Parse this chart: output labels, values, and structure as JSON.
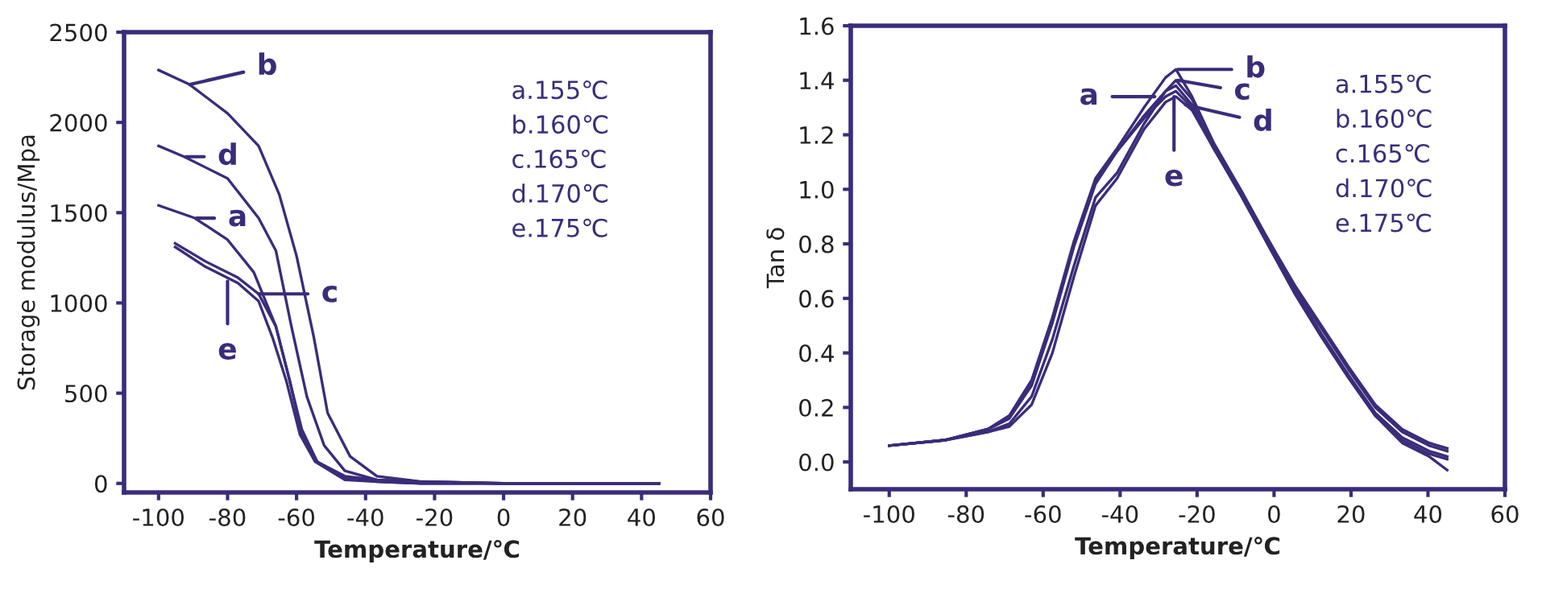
{
  "chart_data": [
    {
      "type": "line",
      "xlabel": "Temperature/℃",
      "ylabel": "Storage modulus/Mpa",
      "xlim": [
        -110,
        60
      ],
      "ylim": [
        -50,
        2500
      ],
      "xticks": [
        -100,
        -80,
        -60,
        -40,
        -20,
        0,
        20,
        40,
        60
      ],
      "yticks": [
        0,
        500,
        1000,
        1500,
        2000,
        2500
      ],
      "grid": false,
      "legend": false,
      "marker": "none",
      "line_style": "solid",
      "series": [
        {
          "color": "#3b2c7a",
          "x": [
            -100,
            -89.5,
            -80,
            -72.4,
            -66,
            -62,
            -58.5,
            -54,
            -46,
            -36.7,
            -24,
            0,
            45
          ],
          "values": [
            1540,
            1470,
            1350,
            1170,
            870,
            570,
            270,
            120,
            40,
            20,
            10,
            0,
            0
          ]
        },
        {
          "color": "#3b2c7a",
          "x": [
            -100,
            -91,
            -80,
            -71,
            -65,
            -60,
            -55,
            -51,
            -44.5,
            -36.7,
            -24,
            0,
            45
          ],
          "values": [
            2290,
            2210,
            2050,
            1870,
            1600,
            1260,
            810,
            390,
            150,
            40,
            10,
            0,
            0
          ]
        },
        {
          "color": "#3b2c7a",
          "x": [
            -95.2,
            -86.4,
            -77,
            -71,
            -66,
            -62,
            -58.5,
            -54,
            -46,
            -36.7,
            -24,
            0,
            45
          ],
          "values": [
            1330,
            1230,
            1140,
            1050,
            870,
            570,
            300,
            120,
            30,
            10,
            0,
            0,
            0
          ]
        },
        {
          "color": "#3b2c7a",
          "x": [
            -100,
            -92.6,
            -80,
            -71,
            -66,
            -61.5,
            -57,
            -52,
            -46,
            -36.7,
            -24,
            0,
            45
          ],
          "values": [
            1870,
            1810,
            1690,
            1470,
            1290,
            870,
            480,
            210,
            70,
            20,
            10,
            0,
            0
          ]
        },
        {
          "color": "#3b2c7a",
          "x": [
            -95.2,
            -86.4,
            -77,
            -71,
            -67,
            -63,
            -59,
            -54.6,
            -46,
            -36.7,
            -24,
            0,
            45
          ],
          "values": [
            1310,
            1200,
            1110,
            1010,
            810,
            570,
            270,
            120,
            20,
            10,
            0,
            0,
            0
          ]
        }
      ],
      "annotations": [
        {
          "text": "a",
          "x": -89,
          "y": 1470
        },
        {
          "text": "b",
          "x": -91,
          "y": 2210
        },
        {
          "text": "c",
          "x": -71,
          "y": 1050
        },
        {
          "text": "d",
          "x": -92,
          "y": 1810
        },
        {
          "text": "e",
          "x": -80,
          "y": 1120
        },
        "a.155℃",
        "b.160℃",
        "c.165℃",
        "d.170℃",
        "e.175℃"
      ]
    },
    {
      "type": "line",
      "xlabel": "Temperature/℃",
      "ylabel": "Tan δ",
      "xlim": [
        -110,
        60
      ],
      "ylim": [
        -0.1,
        1.6
      ],
      "xticks": [
        -100,
        -80,
        -60,
        -40,
        -20,
        0,
        20,
        40,
        60
      ],
      "yticks": [
        {
          "value": 0,
          "label": "0.0"
        },
        0.2,
        0.4,
        0.6,
        0.8,
        {
          "value": 1,
          "label": "1.0"
        },
        1.2,
        1.4,
        1.6
      ],
      "grid": false,
      "legend": false,
      "marker": "none",
      "line_style": "solid",
      "series": [
        {
          "color": "#3b2c7a",
          "x": [
            -100,
            -85.6,
            -74.4,
            -68.8,
            -63,
            -57.6,
            -52,
            -46.4,
            -40.8,
            -33.8,
            -28.2,
            -25.5,
            -21.3,
            -15.7,
            -8.7,
            -1.7,
            5.3,
            12.3,
            19.3,
            26.3,
            33.3,
            40.3,
            45
          ],
          "values": [
            0.06,
            0.08,
            0.12,
            0.16,
            0.28,
            0.51,
            0.79,
            1.02,
            1.14,
            1.26,
            1.34,
            1.36,
            1.3,
            1.16,
            0.99,
            0.81,
            0.63,
            0.47,
            0.32,
            0.18,
            0.09,
            0.04,
            0.02
          ]
        },
        {
          "color": "#3b2c7a",
          "x": [
            -100,
            -85.6,
            -74.4,
            -68.8,
            -63,
            -57.6,
            -52,
            -46.4,
            -40.8,
            -33.8,
            -28.2,
            -25.5,
            -21.3,
            -15.7,
            -8.7,
            -1.7,
            5.3,
            12.3,
            19.3,
            26.3,
            33.3,
            40.3,
            45
          ],
          "values": [
            0.06,
            0.08,
            0.12,
            0.17,
            0.3,
            0.53,
            0.81,
            1.04,
            1.15,
            1.3,
            1.41,
            1.44,
            1.34,
            1.17,
            0.99,
            0.8,
            0.62,
            0.46,
            0.31,
            0.17,
            0.07,
            0.02,
            -0.03
          ]
        },
        {
          "color": "#3b2c7a",
          "x": [
            -100,
            -85.6,
            -74.4,
            -68.8,
            -63,
            -57.6,
            -52,
            -46.4,
            -40.8,
            -33.8,
            -28.2,
            -25.5,
            -21.3,
            -15.7,
            -8.7,
            -1.7,
            5.3,
            12.3,
            19.3,
            26.3,
            33.3,
            40.3,
            45
          ],
          "values": [
            0.06,
            0.08,
            0.11,
            0.14,
            0.24,
            0.45,
            0.72,
            0.97,
            1.06,
            1.24,
            1.36,
            1.4,
            1.33,
            1.17,
            1.0,
            0.82,
            0.64,
            0.49,
            0.34,
            0.2,
            0.11,
            0.06,
            0.04
          ]
        },
        {
          "color": "#3b2c7a",
          "x": [
            -100,
            -85.6,
            -74.4,
            -68.8,
            -63,
            -57.6,
            -52,
            -46.4,
            -40.8,
            -33.8,
            -28.2,
            -25.5,
            -21.3,
            -15.7,
            -8.7,
            -1.7,
            5.3,
            12.3,
            19.3,
            26.3,
            33.3,
            40.3,
            45
          ],
          "values": [
            0.06,
            0.08,
            0.12,
            0.16,
            0.29,
            0.52,
            0.8,
            1.03,
            1.14,
            1.27,
            1.36,
            1.38,
            1.31,
            1.15,
            0.98,
            0.8,
            0.62,
            0.46,
            0.31,
            0.17,
            0.08,
            0.03,
            0.01
          ]
        },
        {
          "color": "#3b2c7a",
          "x": [
            -100,
            -85.6,
            -74.4,
            -68.8,
            -63,
            -57.6,
            -52,
            -46.4,
            -40.8,
            -33.8,
            -28.2,
            -25.5,
            -21.3,
            -15.7,
            -8.7,
            -1.7,
            5.3,
            12.3,
            19.3,
            26.3,
            33.3,
            40.3,
            45
          ],
          "values": [
            0.06,
            0.08,
            0.11,
            0.13,
            0.21,
            0.4,
            0.68,
            0.94,
            1.04,
            1.22,
            1.32,
            1.34,
            1.29,
            1.15,
            0.99,
            0.82,
            0.65,
            0.5,
            0.35,
            0.21,
            0.12,
            0.07,
            0.05
          ]
        }
      ],
      "annotations": [
        {
          "text": "a",
          "x": -31,
          "y": 1.34
        },
        {
          "text": "b",
          "x": -25,
          "y": 1.44
        },
        {
          "text": "c",
          "x": -25,
          "y": 1.4
        },
        {
          "text": "d",
          "x": -23,
          "y": 1.31
        },
        {
          "text": "e",
          "x": -26,
          "y": 1.34
        },
        "a.155℃",
        "b.160℃",
        "c.165℃",
        "d.170℃",
        "e.175℃"
      ]
    }
  ]
}
